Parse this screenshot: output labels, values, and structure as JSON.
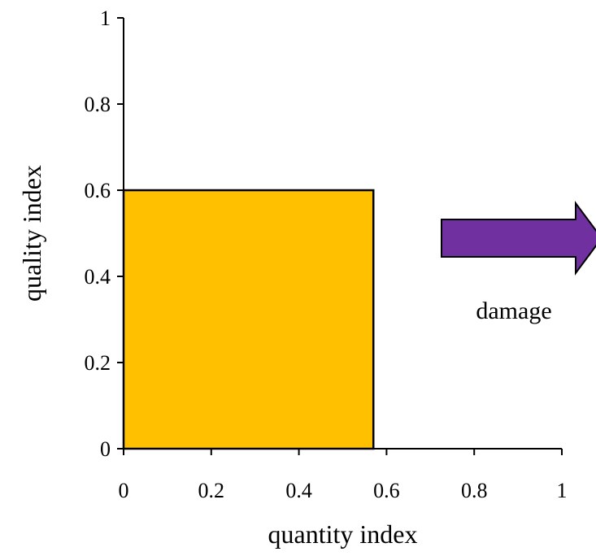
{
  "chart_data": {
    "type": "area",
    "xlabel": "quantity index",
    "ylabel": "quality index",
    "xlim": [
      0,
      1
    ],
    "ylim": [
      0,
      1
    ],
    "x_ticks": [
      "0",
      "0.2",
      "0.4",
      "0.6",
      "0.8",
      "1"
    ],
    "y_ticks": [
      "0",
      "0.2",
      "0.4",
      "0.6",
      "0.8",
      "1"
    ],
    "grid": false,
    "rectangle": {
      "x": 0.57,
      "y": 0.6,
      "fill": "#FFC000"
    },
    "arrow": {
      "label": "damage",
      "color": "#7030A0"
    }
  }
}
